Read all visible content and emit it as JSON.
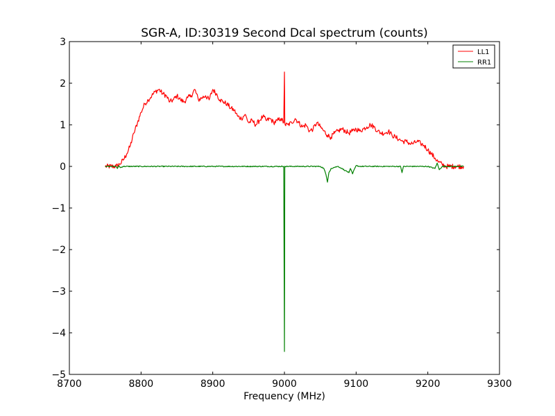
{
  "chart_data": {
    "type": "line",
    "title": "SGR-A, ID:30319 Second Dcal spectrum (counts)",
    "xlabel": "Frequency (MHz)",
    "ylabel": "",
    "xlim": [
      8700,
      9300
    ],
    "ylim": [
      -5,
      3
    ],
    "x_ticks": [
      8700,
      8800,
      8900,
      9000,
      9100,
      9200,
      9300
    ],
    "y_ticks": [
      -5,
      -4,
      -3,
      -2,
      -1,
      0,
      1,
      2,
      3
    ],
    "x_tick_labels": [
      "8700",
      "8800",
      "8900",
      "9000",
      "9100",
      "9200",
      "9300"
    ],
    "y_tick_labels": [
      "−5",
      "−4",
      "−3",
      "−2",
      "−1",
      "0",
      "1",
      "2",
      "3"
    ],
    "grid": false,
    "legend_position": "top-right",
    "series": [
      {
        "name": "LL1",
        "color": "#ff0000",
        "x": [
          8750,
          8765,
          8770,
          8775,
          8780,
          8785,
          8790,
          8795,
          8800,
          8805,
          8810,
          8815,
          8820,
          8825,
          8830,
          8835,
          8840,
          8845,
          8850,
          8855,
          8860,
          8865,
          8870,
          8875,
          8880,
          8885,
          8890,
          8895,
          8900,
          8905,
          8910,
          8915,
          8920,
          8925,
          8930,
          8935,
          8940,
          8945,
          8950,
          8955,
          8960,
          8965,
          8970,
          8975,
          8980,
          8985,
          8990,
          8995,
          8999,
          9000,
          9000.5,
          9001,
          9005,
          9010,
          9015,
          9020,
          9025,
          9030,
          9035,
          9040,
          9045,
          9050,
          9055,
          9060,
          9065,
          9070,
          9075,
          9080,
          9085,
          9090,
          9095,
          9100,
          9105,
          9110,
          9115,
          9120,
          9125,
          9130,
          9135,
          9140,
          9145,
          9150,
          9155,
          9160,
          9165,
          9170,
          9175,
          9180,
          9185,
          9190,
          9195,
          9200,
          9205,
          9210,
          9215,
          9220,
          9225,
          9230,
          9240,
          9250
        ],
        "y": [
          0.0,
          0.0,
          0.05,
          0.15,
          0.3,
          0.5,
          0.8,
          1.05,
          1.3,
          1.5,
          1.6,
          1.7,
          1.8,
          1.85,
          1.75,
          1.7,
          1.55,
          1.6,
          1.7,
          1.6,
          1.55,
          1.65,
          1.7,
          1.85,
          1.6,
          1.65,
          1.7,
          1.6,
          1.85,
          1.75,
          1.6,
          1.55,
          1.5,
          1.4,
          1.35,
          1.2,
          1.15,
          1.25,
          1.05,
          1.1,
          1.0,
          1.1,
          1.2,
          1.1,
          1.15,
          1.05,
          1.1,
          1.15,
          1.05,
          2.27,
          1.05,
          1.0,
          1.0,
          1.05,
          1.15,
          1.05,
          0.95,
          1.0,
          0.85,
          0.9,
          1.05,
          0.95,
          0.85,
          0.75,
          0.7,
          0.8,
          0.85,
          0.9,
          0.85,
          0.8,
          0.85,
          0.9,
          0.85,
          0.9,
          0.95,
          1.0,
          0.95,
          0.85,
          0.8,
          0.8,
          0.85,
          0.75,
          0.7,
          0.65,
          0.6,
          0.6,
          0.55,
          0.55,
          0.6,
          0.55,
          0.5,
          0.4,
          0.3,
          0.2,
          0.1,
          0.05,
          0.0,
          0.0,
          0.0,
          0.0
        ]
      },
      {
        "name": "RR1",
        "color": "#008000",
        "x": [
          8750,
          8765,
          8767,
          8769,
          8771,
          8775,
          8800,
          8850,
          8900,
          8950,
          8999,
          9000,
          9000.5,
          9001,
          9050,
          9055,
          9058,
          9060,
          9062,
          9065,
          9070,
          9075,
          9080,
          9085,
          9090,
          9092,
          9095,
          9098,
          9100,
          9105,
          9150,
          9162,
          9164,
          9166,
          9170,
          9200,
          9210,
          9213,
          9216,
          9220,
          9250
        ],
        "y": [
          0.0,
          0.0,
          -0.05,
          0.02,
          -0.03,
          0.0,
          0.0,
          0.0,
          0.0,
          0.0,
          0.0,
          -4.45,
          0.0,
          0.0,
          0.0,
          -0.05,
          -0.2,
          -0.38,
          -0.15,
          -0.05,
          -0.02,
          0.0,
          -0.05,
          -0.1,
          -0.15,
          -0.05,
          -0.18,
          -0.05,
          0.02,
          0.0,
          0.0,
          0.0,
          -0.15,
          0.0,
          0.0,
          0.0,
          -0.05,
          0.08,
          -0.08,
          0.0,
          0.0
        ]
      }
    ]
  }
}
